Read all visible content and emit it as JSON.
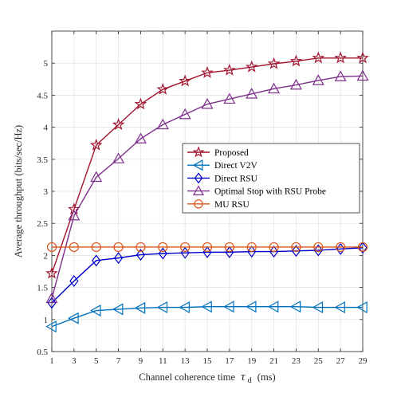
{
  "chart_data": {
    "type": "line",
    "xlabel": "Channel coherence time",
    "xlabel_symbol": "τ",
    "xlabel_subscript": "d",
    "xlabel_unit": "(ms)",
    "ylabel": "Average throughput (bits/sec/Hz)",
    "xlim": [
      1,
      29
    ],
    "ylim": [
      0.5,
      5.5
    ],
    "xticks": [
      1,
      3,
      5,
      7,
      9,
      11,
      13,
      15,
      17,
      19,
      21,
      23,
      25,
      27,
      29
    ],
    "yticks": [
      0.5,
      1,
      1.5,
      2,
      2.5,
      3,
      3.5,
      4,
      4.5,
      5
    ],
    "ytick_labels": [
      "0.5",
      "1",
      "1.5",
      "2",
      "2.5",
      "3",
      "3.5",
      "4",
      "4.5",
      "5"
    ],
    "grid": true,
    "legend_position": "center-right",
    "x": [
      1,
      3,
      5,
      7,
      9,
      11,
      13,
      15,
      17,
      19,
      21,
      23,
      25,
      27,
      29
    ],
    "series": [
      {
        "name": "Proposed",
        "color": "#a2142f",
        "marker": "star",
        "values": [
          1.72,
          2.72,
          3.72,
          4.04,
          4.36,
          4.59,
          4.72,
          4.85,
          4.89,
          4.94,
          4.99,
          5.03,
          5.08,
          5.08,
          5.08
        ]
      },
      {
        "name": "Direct V2V",
        "color": "#0072bd",
        "marker": "triangle-left",
        "values": [
          0.89,
          1.02,
          1.14,
          1.16,
          1.18,
          1.19,
          1.19,
          1.2,
          1.2,
          1.2,
          1.2,
          1.2,
          1.19,
          1.19,
          1.19
        ]
      },
      {
        "name": "Direct RSU",
        "color": "#0000cc",
        "marker": "diamond",
        "values": [
          1.26,
          1.6,
          1.92,
          1.96,
          2.01,
          2.03,
          2.04,
          2.05,
          2.05,
          2.06,
          2.06,
          2.07,
          2.08,
          2.1,
          2.12
        ]
      },
      {
        "name": "Optimal Stop with RSU Probe",
        "color": "#7e2f8e",
        "marker": "triangle-up",
        "values": [
          1.33,
          2.62,
          3.22,
          3.51,
          3.82,
          4.04,
          4.2,
          4.36,
          4.44,
          4.52,
          4.6,
          4.66,
          4.73,
          4.79,
          4.8
        ]
      },
      {
        "name": "MU RSU",
        "color": "#d95319",
        "marker": "circle",
        "values": [
          2.13,
          2.13,
          2.13,
          2.13,
          2.13,
          2.13,
          2.13,
          2.13,
          2.13,
          2.13,
          2.13,
          2.13,
          2.13,
          2.13,
          2.13
        ]
      }
    ]
  }
}
